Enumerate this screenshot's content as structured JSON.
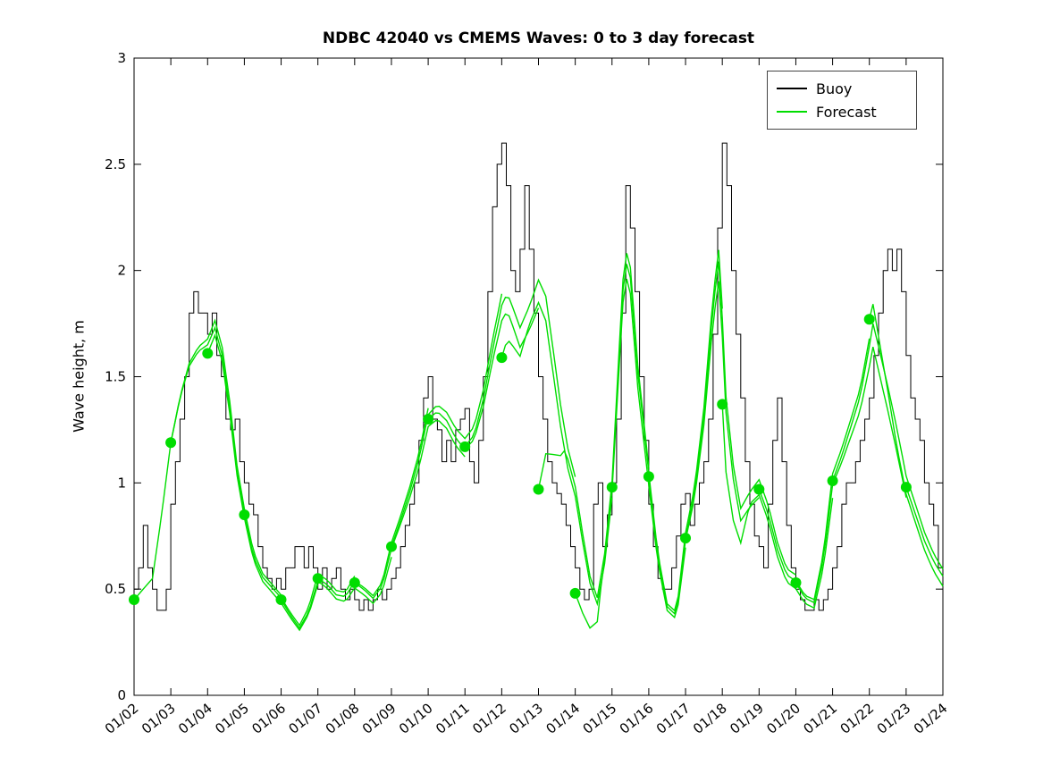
{
  "title": "NDBC 42040 vs CMEMS Waves: 0 to 3 day forecast",
  "ylabel": "Wave height, m",
  "legend": [
    {
      "label": "Buoy",
      "color": "#000000"
    },
    {
      "label": "Forecast",
      "color": "#00dd00"
    }
  ],
  "chart_data": {
    "type": "line",
    "title": "NDBC 42040 vs CMEMS Waves: 0 to 3 day forecast",
    "xlabel": "",
    "ylabel": "Wave height, m",
    "ylim": [
      0,
      3
    ],
    "yticks": [
      0,
      0.5,
      1,
      1.5,
      2,
      2.5,
      3
    ],
    "ytick_labels": [
      "0",
      "0.5",
      "1",
      "1.5",
      "2",
      "2.5",
      "3"
    ],
    "x_days_range": [
      0,
      22
    ],
    "x_tick_labels": [
      "01/02",
      "01/03",
      "01/04",
      "01/05",
      "01/06",
      "01/07",
      "01/08",
      "01/09",
      "01/10",
      "01/11",
      "01/12",
      "01/13",
      "01/14",
      "01/15",
      "01/16",
      "01/17",
      "01/18",
      "01/19",
      "01/20",
      "01/21",
      "01/22",
      "01/23",
      "01/24"
    ],
    "grid": false,
    "legend_position": "top-right",
    "buoy": {
      "name": "Buoy",
      "color": "#000000",
      "line_width": 1,
      "t_start": 0,
      "dt_days": 0.125,
      "values": [
        0.5,
        0.6,
        0.8,
        0.6,
        0.5,
        0.4,
        0.4,
        0.5,
        0.9,
        1.1,
        1.3,
        1.5,
        1.8,
        1.9,
        1.8,
        1.8,
        1.7,
        1.8,
        1.6,
        1.5,
        1.3,
        1.25,
        1.3,
        1.1,
        1.0,
        0.9,
        0.85,
        0.7,
        0.6,
        0.55,
        0.5,
        0.55,
        0.5,
        0.6,
        0.6,
        0.7,
        0.7,
        0.6,
        0.7,
        0.6,
        0.5,
        0.6,
        0.5,
        0.55,
        0.6,
        0.5,
        0.45,
        0.5,
        0.45,
        0.4,
        0.45,
        0.4,
        0.45,
        0.5,
        0.45,
        0.5,
        0.55,
        0.6,
        0.7,
        0.8,
        0.9,
        1.0,
        1.2,
        1.4,
        1.5,
        1.3,
        1.25,
        1.1,
        1.2,
        1.1,
        1.25,
        1.3,
        1.35,
        1.1,
        1.0,
        1.2,
        1.5,
        1.9,
        2.3,
        2.5,
        2.6,
        2.4,
        2.0,
        1.9,
        2.1,
        2.4,
        2.1,
        1.8,
        1.5,
        1.3,
        1.1,
        1.0,
        0.95,
        0.9,
        0.8,
        0.7,
        0.6,
        0.5,
        0.45,
        0.5,
        0.9,
        1.0,
        0.7,
        0.85,
        1.0,
        1.3,
        1.8,
        2.4,
        2.2,
        1.9,
        1.5,
        1.2,
        0.9,
        0.7,
        0.55,
        0.5,
        0.5,
        0.6,
        0.75,
        0.9,
        0.95,
        0.8,
        0.9,
        1.0,
        1.1,
        1.3,
        1.7,
        2.2,
        2.6,
        2.4,
        2.0,
        1.7,
        1.4,
        1.1,
        0.9,
        0.75,
        0.7,
        0.6,
        0.9,
        1.2,
        1.4,
        1.1,
        0.8,
        0.6,
        0.5,
        0.45,
        0.4,
        0.4,
        0.45,
        0.4,
        0.45,
        0.5,
        0.6,
        0.7,
        0.9,
        1.0,
        1.0,
        1.1,
        1.2,
        1.3,
        1.4,
        1.6,
        1.8,
        2.0,
        2.1,
        2.0,
        2.1,
        1.9,
        1.6,
        1.4,
        1.3,
        1.2,
        1.0,
        0.9,
        0.8,
        0.6,
        0.5
      ]
    },
    "forecast": {
      "name": "Forecast",
      "color": "#00dd00",
      "line_width": 1.4,
      "marker_radius": 6,
      "run_length_days": 3,
      "consensus": [
        [
          0,
          0.45
        ],
        [
          0.25,
          0.5
        ],
        [
          0.5,
          0.55
        ],
        [
          0.75,
          0.85
        ],
        [
          1,
          1.19
        ],
        [
          1.25,
          1.4
        ],
        [
          1.5,
          1.55
        ],
        [
          1.75,
          1.62
        ],
        [
          2,
          1.65
        ],
        [
          2.2,
          1.73
        ],
        [
          2.4,
          1.6
        ],
        [
          2.6,
          1.35
        ],
        [
          2.8,
          1.05
        ],
        [
          3,
          0.85
        ],
        [
          3.25,
          0.65
        ],
        [
          3.5,
          0.55
        ],
        [
          3.75,
          0.5
        ],
        [
          4,
          0.45
        ],
        [
          4.25,
          0.38
        ],
        [
          4.5,
          0.32
        ],
        [
          4.75,
          0.4
        ],
        [
          5,
          0.55
        ],
        [
          5.25,
          0.52
        ],
        [
          5.5,
          0.47
        ],
        [
          5.75,
          0.46
        ],
        [
          6,
          0.53
        ],
        [
          6.25,
          0.5
        ],
        [
          6.5,
          0.46
        ],
        [
          6.75,
          0.52
        ],
        [
          7,
          0.7
        ],
        [
          7.25,
          0.82
        ],
        [
          7.5,
          0.95
        ],
        [
          7.75,
          1.1
        ],
        [
          8,
          1.3
        ],
        [
          8.25,
          1.34
        ],
        [
          8.5,
          1.3
        ],
        [
          8.75,
          1.22
        ],
        [
          9,
          1.17
        ],
        [
          9.25,
          1.22
        ],
        [
          9.5,
          1.38
        ],
        [
          9.75,
          1.6
        ],
        [
          10,
          1.8
        ],
        [
          10.15,
          1.85
        ],
        [
          10.3,
          1.78
        ],
        [
          10.5,
          1.68
        ],
        [
          10.75,
          1.77
        ],
        [
          11,
          1.88
        ],
        [
          11.2,
          1.8
        ],
        [
          11.4,
          1.55
        ],
        [
          11.6,
          1.3
        ],
        [
          11.8,
          1.1
        ],
        [
          12,
          0.97
        ],
        [
          12.2,
          0.75
        ],
        [
          12.4,
          0.55
        ],
        [
          12.6,
          0.45
        ],
        [
          12.8,
          0.65
        ],
        [
          13,
          0.98
        ],
        [
          13.2,
          1.6
        ],
        [
          13.35,
          2.05
        ],
        [
          13.5,
          1.95
        ],
        [
          13.7,
          1.5
        ],
        [
          14,
          1.03
        ],
        [
          14.25,
          0.65
        ],
        [
          14.5,
          0.42
        ],
        [
          14.75,
          0.38
        ],
        [
          15,
          0.74
        ],
        [
          15.25,
          0.95
        ],
        [
          15.5,
          1.3
        ],
        [
          15.75,
          1.8
        ],
        [
          15.9,
          2.0
        ],
        [
          16.05,
          1.6
        ],
        [
          16.1,
          1.37
        ],
        [
          16.3,
          1.05
        ],
        [
          16.5,
          0.85
        ],
        [
          16.75,
          0.92
        ],
        [
          17,
          0.97
        ],
        [
          17.25,
          0.85
        ],
        [
          17.5,
          0.68
        ],
        [
          17.75,
          0.56
        ],
        [
          18,
          0.53
        ],
        [
          18.25,
          0.46
        ],
        [
          18.5,
          0.44
        ],
        [
          18.75,
          0.65
        ],
        [
          19,
          1.01
        ],
        [
          19.25,
          1.12
        ],
        [
          19.5,
          1.25
        ],
        [
          19.75,
          1.38
        ],
        [
          20,
          1.6
        ],
        [
          20.1,
          1.7
        ],
        [
          20.3,
          1.55
        ],
        [
          20.5,
          1.4
        ],
        [
          20.75,
          1.2
        ],
        [
          21,
          0.98
        ],
        [
          21.25,
          0.85
        ],
        [
          21.5,
          0.72
        ],
        [
          21.75,
          0.62
        ],
        [
          22,
          0.55
        ],
        [
          22.5,
          0.6
        ],
        [
          23,
          0.68
        ],
        [
          23.5,
          0.72
        ],
        [
          24,
          0.75
        ]
      ],
      "runs": [
        {
          "t0": 0,
          "v0": 0.45,
          "bias": 0.0
        },
        {
          "t0": 1,
          "v0": 1.19,
          "bias": 0.05
        },
        {
          "t0": 2,
          "v0": 1.61,
          "bias": -0.05
        },
        {
          "t0": 3,
          "v0": 0.85,
          "bias": 0.06
        },
        {
          "t0": 4,
          "v0": 0.45,
          "bias": -0.07
        },
        {
          "t0": 5,
          "v0": 0.55,
          "bias": 0.04
        },
        {
          "t0": 6,
          "v0": 0.53,
          "bias": -0.04
        },
        {
          "t0": 7,
          "v0": 0.7,
          "bias": 0.05
        },
        {
          "t0": 8,
          "v0": 1.3,
          "bias": -0.03
        },
        {
          "t0": 9,
          "v0": 1.17,
          "bias": 0.06
        },
        {
          "t0": 10,
          "v0": 1.59,
          "bias": -0.05
        },
        {
          "t0": 11,
          "v0": 0.97,
          "bias": 0.04
        },
        {
          "t0": 12,
          "v0": 0.48,
          "bias": -0.06
        },
        {
          "t0": 13,
          "v0": 0.98,
          "bias": 0.05
        },
        {
          "t0": 14,
          "v0": 1.03,
          "bias": -0.04
        },
        {
          "t0": 15,
          "v0": 0.74,
          "bias": 0.07
        },
        {
          "t0": 16,
          "v0": 1.37,
          "bias": -0.08
        },
        {
          "t0": 17,
          "v0": 0.97,
          "bias": 0.05
        },
        {
          "t0": 18,
          "v0": 0.53,
          "bias": -0.05
        },
        {
          "t0": 19,
          "v0": 1.01,
          "bias": 0.08
        },
        {
          "t0": 20,
          "v0": 1.77,
          "bias": -0.1
        },
        {
          "t0": 21,
          "v0": 0.98,
          "bias": 0.06
        }
      ]
    }
  }
}
